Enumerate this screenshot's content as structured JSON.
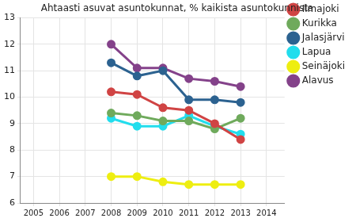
{
  "chart_data": {
    "type": "line",
    "title": "Ahtaasti asuvat asuntokunnat, % kaikista asuntokunnista",
    "x": [
      2008,
      2009,
      2010,
      2011,
      2012,
      2013
    ],
    "series": [
      {
        "name": "Ilmajoki",
        "color": "#d04444",
        "values": [
          10.2,
          10.1,
          9.6,
          9.5,
          9.0,
          8.4
        ]
      },
      {
        "name": "Kurikka",
        "color": "#6faa5c",
        "values": [
          9.4,
          9.3,
          9.1,
          9.1,
          8.8,
          9.2
        ]
      },
      {
        "name": "Jalasjärvi",
        "color": "#2c6290",
        "values": [
          11.3,
          10.8,
          11.0,
          9.9,
          9.9,
          9.8
        ]
      },
      {
        "name": "Lapua",
        "color": "#22dded",
        "values": [
          9.2,
          8.9,
          8.9,
          9.3,
          8.9,
          8.6
        ]
      },
      {
        "name": "Seinäjoki",
        "color": "#eeee11",
        "values": [
          7.0,
          7.0,
          6.8,
          6.7,
          6.7,
          6.7
        ]
      },
      {
        "name": "Alavus",
        "color": "#84428a",
        "values": [
          12.0,
          11.1,
          11.1,
          10.7,
          10.6,
          10.4
        ]
      }
    ],
    "xlim": [
      2004.5,
      2014.7
    ],
    "xticks": [
      2005,
      2006,
      2007,
      2008,
      2009,
      2010,
      2011,
      2012,
      2013,
      2014
    ],
    "ylim": [
      6,
      13
    ],
    "yticks": [
      6,
      7,
      8,
      9,
      10,
      11,
      12,
      13
    ],
    "grid": true,
    "legend": "right",
    "marker": "circle"
  }
}
